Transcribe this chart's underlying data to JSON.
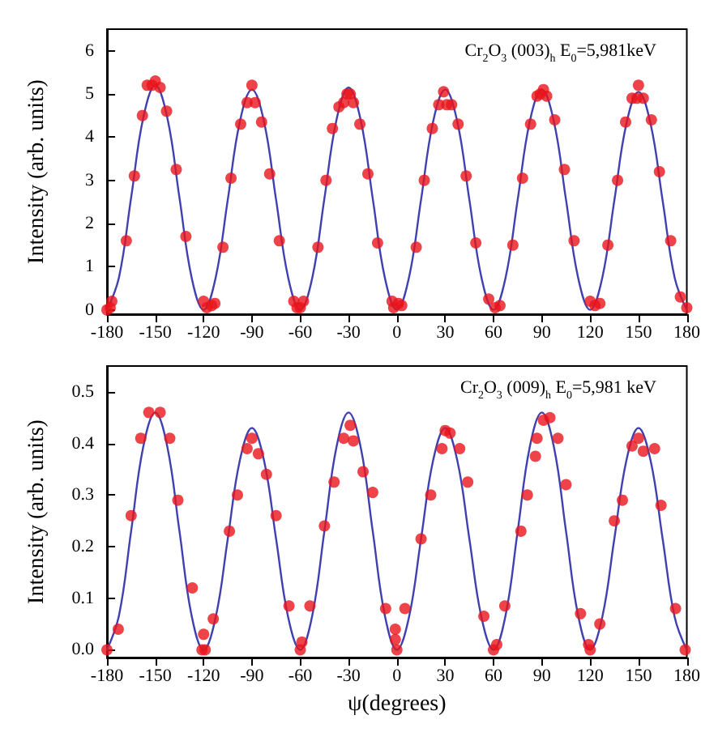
{
  "chart_data": [
    {
      "type": "scatter",
      "ylabel": "Intensity (arb. units)",
      "annotations": [
        "Cr$_{2}$O$_{3}$ (003)$_{h}$ E$_{0}$=5,981keV"
      ],
      "xlim": [
        -180,
        180
      ],
      "xticks": [
        -180,
        -150,
        -120,
        -90,
        -60,
        -30,
        0,
        30,
        60,
        90,
        120,
        150,
        180
      ],
      "ylim": [
        -0.1,
        6.5
      ],
      "yticks": [
        0,
        1,
        2,
        3,
        4,
        5,
        6
      ],
      "grid": false,
      "series": [
        {
          "type": "line",
          "color": "#4040b0",
          "marker": "none",
          "x": [
            -180,
            -172.5,
            -165,
            -157.5,
            -150,
            -142.5,
            -135,
            -127.5,
            -120,
            -112.5,
            -105,
            -97.5,
            -90,
            -82.5,
            -75,
            -67.5,
            -60,
            -52.5,
            -45,
            -37.5,
            -30,
            -22.5,
            -15,
            -7.5,
            0,
            7.5,
            15,
            22.5,
            30,
            37.5,
            45,
            52.5,
            60,
            67.5,
            75,
            82.5,
            90,
            97.5,
            105,
            112.5,
            120,
            127.5,
            135,
            142.5,
            150,
            157.5,
            165,
            172.5,
            180
          ],
          "values": [
            0,
            0.76,
            2.6,
            4.44,
            5.2,
            4.44,
            2.6,
            0.76,
            0,
            0.75,
            2.55,
            4.36,
            5.1,
            4.36,
            2.55,
            0.75,
            0,
            0.75,
            2.58,
            4.4,
            5.15,
            4.4,
            2.58,
            0.75,
            0,
            0.75,
            2.55,
            4.36,
            5.1,
            4.36,
            2.55,
            0.75,
            0,
            0.75,
            2.55,
            4.36,
            5.1,
            4.36,
            2.55,
            0.75,
            0,
            0.74,
            2.53,
            4.31,
            5.05,
            4.31,
            2.53,
            0.74,
            0
          ]
        },
        {
          "color": "#e8141c",
          "marker": "circle",
          "x": [
            -180,
            -178,
            -177,
            -168,
            -163,
            -158,
            -155,
            -152,
            -150,
            -147,
            -143,
            -137,
            -131,
            -120,
            -118,
            -115,
            -113,
            -108,
            -103,
            -97,
            -93,
            -90,
            -88,
            -84,
            -79,
            -73,
            -64,
            -62,
            -60,
            -58,
            -49,
            -44,
            -40,
            -36,
            -33,
            -31,
            -29,
            -27,
            -23,
            -18,
            -12,
            -3,
            -2,
            1,
            3,
            12,
            17,
            22,
            26,
            29,
            31,
            34,
            38,
            43,
            49,
            57,
            61,
            64,
            72,
            78,
            83,
            87,
            89,
            91,
            93,
            98,
            104,
            110,
            120,
            123,
            126,
            131,
            137,
            142,
            146,
            149,
            150,
            153,
            158,
            163,
            170,
            176,
            180
          ],
          "values": [
            0,
            0.05,
            0.2,
            1.6,
            3.1,
            4.5,
            5.2,
            5.2,
            5.3,
            5.15,
            4.6,
            3.25,
            1.7,
            0.2,
            0.05,
            0.1,
            0.15,
            1.45,
            3.05,
            4.3,
            4.8,
            5.2,
            4.8,
            4.35,
            3.15,
            1.6,
            0.2,
            0.05,
            0.05,
            0.2,
            1.45,
            3.0,
            4.2,
            4.7,
            4.8,
            5.0,
            5.0,
            4.8,
            4.3,
            3.15,
            1.55,
            0.2,
            0.05,
            0.15,
            0.1,
            1.45,
            3.0,
            4.2,
            4.75,
            5.05,
            4.75,
            4.75,
            4.3,
            3.1,
            1.55,
            0.25,
            0.05,
            0.1,
            1.5,
            3.05,
            4.3,
            4.95,
            5.0,
            5.1,
            4.95,
            4.4,
            3.25,
            1.6,
            0.2,
            0.1,
            0.15,
            1.5,
            3.0,
            4.35,
            4.9,
            4.9,
            5.2,
            4.9,
            4.4,
            3.2,
            1.6,
            0.3,
            0.05
          ]
        }
      ]
    },
    {
      "type": "scatter",
      "xlabel": "ψ(degrees)",
      "ylabel": "Intensity (arb. units)",
      "annotations": [
        "Cr$_{2}$O$_{3}$ (009)$_{h}$ E$_{0}$=5,981 keV"
      ],
      "xlim": [
        -180,
        180
      ],
      "xticks": [
        -180,
        -150,
        -120,
        -90,
        -60,
        -30,
        0,
        30,
        60,
        90,
        120,
        150,
        180
      ],
      "ylim": [
        -0.015,
        0.55
      ],
      "yticks": [
        {
          "value": 0,
          "label": "0.0"
        },
        0.1,
        0.2,
        0.3,
        0.4,
        0.5
      ],
      "grid": false,
      "series": [
        {
          "type": "line",
          "color": "#4040b0",
          "marker": "none",
          "x": [
            -180,
            -172.5,
            -165,
            -157.5,
            -150,
            -142.5,
            -135,
            -127.5,
            -120,
            -112.5,
            -105,
            -97.5,
            -90,
            -82.5,
            -75,
            -67.5,
            -60,
            -52.5,
            -45,
            -37.5,
            -30,
            -22.5,
            -15,
            -7.5,
            0,
            7.5,
            15,
            22.5,
            30,
            37.5,
            45,
            52.5,
            60,
            67.5,
            75,
            82.5,
            90,
            97.5,
            105,
            112.5,
            120,
            127.5,
            135,
            142.5,
            150,
            157.5,
            165,
            172.5,
            180
          ],
          "values": [
            0,
            0.067,
            0.23,
            0.393,
            0.46,
            0.393,
            0.23,
            0.067,
            0,
            0.063,
            0.215,
            0.367,
            0.43,
            0.367,
            0.215,
            0.063,
            0,
            0.067,
            0.23,
            0.393,
            0.46,
            0.393,
            0.23,
            0.067,
            0,
            0.063,
            0.215,
            0.367,
            0.43,
            0.367,
            0.215,
            0.063,
            0,
            0.067,
            0.23,
            0.393,
            0.46,
            0.393,
            0.23,
            0.067,
            0,
            0.063,
            0.215,
            0.367,
            0.43,
            0.367,
            0.215,
            0.063,
            0
          ]
        },
        {
          "color": "#e8141c",
          "marker": "circle",
          "x": [
            -180,
            -173,
            -165,
            -159,
            -154,
            -147,
            -141,
            -136,
            -127,
            -121,
            -120,
            -119,
            -114,
            -104,
            -99,
            -93,
            -90,
            -86,
            -81,
            -75,
            -67,
            -60,
            -59,
            -54,
            -45,
            -39,
            -33,
            -29,
            -27,
            -21,
            -15,
            -7,
            -1,
            -1,
            0,
            5,
            15,
            21,
            28,
            30,
            33,
            39,
            44,
            54,
            60,
            62,
            67,
            77,
            81,
            86,
            87,
            91,
            95,
            100,
            105,
            114,
            119,
            120,
            126,
            135,
            140,
            146,
            150,
            153,
            160,
            164,
            173,
            179
          ],
          "values": [
            0.0,
            0.04,
            0.26,
            0.41,
            0.46,
            0.46,
            0.41,
            0.29,
            0.12,
            0.0,
            0.03,
            0.0,
            0.06,
            0.23,
            0.3,
            0.39,
            0.41,
            0.38,
            0.34,
            0.26,
            0.085,
            0.0,
            0.015,
            0.085,
            0.24,
            0.325,
            0.41,
            0.435,
            0.405,
            0.345,
            0.305,
            0.08,
            0.04,
            0.02,
            0.0,
            0.08,
            0.215,
            0.3,
            0.39,
            0.425,
            0.42,
            0.39,
            0.325,
            0.065,
            0.0,
            0.01,
            0.085,
            0.23,
            0.3,
            0.375,
            0.41,
            0.445,
            0.45,
            0.41,
            0.32,
            0.07,
            0.01,
            0.0,
            0.05,
            0.25,
            0.29,
            0.395,
            0.41,
            0.385,
            0.39,
            0.28,
            0.08,
            0.0
          ]
        }
      ]
    }
  ]
}
